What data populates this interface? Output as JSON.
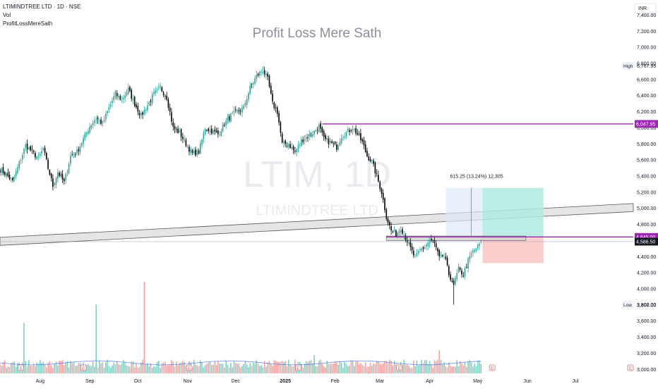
{
  "header": {
    "symbol_line": "LTIMINDTREE LTD · 1D · NSE",
    "volume_label": "Vol",
    "indicator_label": "ProfitLossMereSath"
  },
  "watermark": {
    "title": "Profit Loss Mere Sath",
    "ticker": "LTIM, 1D",
    "name": "LTIMINDTREE LTD"
  },
  "currency": "INR",
  "colors": {
    "up": "#26a69a",
    "down": "#000000",
    "vol_up": "#7fd0c4",
    "vol_down": "#f7a3a3",
    "level": "#9c27b0",
    "channel": "#c8c8c8",
    "profit_zone": "#b2ebe2",
    "loss_zone": "#fbc7c7",
    "measure_zone": "#dfe9fb",
    "price_tag": "#131722"
  },
  "chart_data": {
    "type": "candlestick",
    "title": "Profit Loss Mere Sath",
    "ylim": [
      2950,
      7500
    ],
    "y_ticks": [
      3000,
      3200,
      3400,
      3600,
      3800,
      4000,
      4200,
      4400,
      4600,
      4800,
      5000,
      5200,
      5400,
      5600,
      5800,
      6000,
      6200,
      6400,
      6600,
      6800,
      7000,
      7200,
      7400
    ],
    "x_ticks": [
      {
        "label": "Aug",
        "day": 25
      },
      {
        "label": "Sep",
        "day": 56
      },
      {
        "label": "Oct",
        "day": 86
      },
      {
        "label": "Nov",
        "day": 117
      },
      {
        "label": "Dec",
        "day": 147
      },
      {
        "label": "2025",
        "day": 178
      },
      {
        "label": "Feb",
        "day": 209
      },
      {
        "label": "Mar",
        "day": 237
      },
      {
        "label": "Apr",
        "day": 268
      },
      {
        "label": "May",
        "day": 298
      },
      {
        "label": "Jun",
        "day": 329
      },
      {
        "label": "Jul",
        "day": 359
      }
    ],
    "x_range": [
      0,
      395
    ],
    "anchors": [
      {
        "day": 0,
        "price": 5480
      },
      {
        "day": 4,
        "price": 5420
      },
      {
        "day": 8,
        "price": 5330
      },
      {
        "day": 12,
        "price": 5560
      },
      {
        "day": 16,
        "price": 5780
      },
      {
        "day": 20,
        "price": 5700
      },
      {
        "day": 24,
        "price": 5620
      },
      {
        "day": 27,
        "price": 5740
      },
      {
        "day": 30,
        "price": 5500
      },
      {
        "day": 33,
        "price": 5280
      },
      {
        "day": 36,
        "price": 5450
      },
      {
        "day": 40,
        "price": 5320
      },
      {
        "day": 44,
        "price": 5650
      },
      {
        "day": 48,
        "price": 5700
      },
      {
        "day": 52,
        "price": 5860
      },
      {
        "day": 56,
        "price": 6020
      },
      {
        "day": 60,
        "price": 6120
      },
      {
        "day": 64,
        "price": 6050
      },
      {
        "day": 68,
        "price": 6250
      },
      {
        "day": 72,
        "price": 6420
      },
      {
        "day": 76,
        "price": 6350
      },
      {
        "day": 80,
        "price": 6480
      },
      {
        "day": 84,
        "price": 6300
      },
      {
        "day": 88,
        "price": 6150
      },
      {
        "day": 92,
        "price": 6280
      },
      {
        "day": 96,
        "price": 6420
      },
      {
        "day": 100,
        "price": 6500
      },
      {
        "day": 104,
        "price": 6380
      },
      {
        "day": 108,
        "price": 6000
      },
      {
        "day": 112,
        "price": 5940
      },
      {
        "day": 116,
        "price": 5800
      },
      {
        "day": 120,
        "price": 5680
      },
      {
        "day": 124,
        "price": 5700
      },
      {
        "day": 128,
        "price": 6000
      },
      {
        "day": 132,
        "price": 5960
      },
      {
        "day": 136,
        "price": 5920
      },
      {
        "day": 140,
        "price": 6050
      },
      {
        "day": 144,
        "price": 6150
      },
      {
        "day": 148,
        "price": 6200
      },
      {
        "day": 152,
        "price": 6250
      },
      {
        "day": 156,
        "price": 6500
      },
      {
        "day": 160,
        "price": 6640
      },
      {
        "day": 164,
        "price": 6720
      },
      {
        "day": 167,
        "price": 6600
      },
      {
        "day": 170,
        "price": 6300
      },
      {
        "day": 173,
        "price": 6200
      },
      {
        "day": 176,
        "price": 5800
      },
      {
        "day": 180,
        "price": 5800
      },
      {
        "day": 184,
        "price": 5700
      },
      {
        "day": 188,
        "price": 5840
      },
      {
        "day": 192,
        "price": 5900
      },
      {
        "day": 196,
        "price": 5950
      },
      {
        "day": 199,
        "price": 6020
      },
      {
        "day": 202,
        "price": 5860
      },
      {
        "day": 206,
        "price": 5820
      },
      {
        "day": 210,
        "price": 5760
      },
      {
        "day": 213,
        "price": 5900
      },
      {
        "day": 216,
        "price": 5940
      },
      {
        "day": 220,
        "price": 6000
      },
      {
        "day": 223,
        "price": 5920
      },
      {
        "day": 226,
        "price": 5820
      },
      {
        "day": 229,
        "price": 5650
      },
      {
        "day": 232,
        "price": 5580
      },
      {
        "day": 235,
        "price": 5400
      },
      {
        "day": 238,
        "price": 5200
      },
      {
        "day": 241,
        "price": 4900
      },
      {
        "day": 244,
        "price": 4720
      },
      {
        "day": 247,
        "price": 4680
      },
      {
        "day": 250,
        "price": 4760
      },
      {
        "day": 253,
        "price": 4640
      },
      {
        "day": 256,
        "price": 4500
      },
      {
        "day": 259,
        "price": 4380
      },
      {
        "day": 262,
        "price": 4480
      },
      {
        "day": 265,
        "price": 4520
      },
      {
        "day": 268,
        "price": 4600
      },
      {
        "day": 271,
        "price": 4560
      },
      {
        "day": 274,
        "price": 4380
      },
      {
        "day": 277,
        "price": 4420
      },
      {
        "day": 280,
        "price": 4180
      },
      {
        "day": 283,
        "price": 4060
      },
      {
        "day": 286,
        "price": 4240
      },
      {
        "day": 289,
        "price": 4180
      },
      {
        "day": 292,
        "price": 4350
      },
      {
        "day": 295,
        "price": 4460
      },
      {
        "day": 298,
        "price": 4520
      },
      {
        "day": 300,
        "price": 4590
      }
    ],
    "resistance_line": {
      "label": "6,047.95",
      "price": 6047.95,
      "from_day": 201
    },
    "support_line": {
      "label": "4,645.00",
      "price": 4645.0,
      "from_day": 241
    },
    "last_price": {
      "label": "4,586.50",
      "price": 4586.5
    },
    "high": {
      "label": "High",
      "value": "6,767.95",
      "price": 6767.95
    },
    "low": {
      "label": "Low",
      "value": "3,802.00",
      "price": 3802.0
    },
    "measurement": {
      "text": "615.25 (13.24%) 12,305",
      "from_price": 4640,
      "to_price": 5255
    },
    "position": {
      "entry": 4640,
      "target": 5255,
      "stop": 4320,
      "from_day": 301,
      "to_day": 339
    },
    "channel": {
      "upper_start": 4640,
      "upper_end": 5060,
      "lower_start": 4540,
      "lower_end": 4960,
      "from_day": 0,
      "to_day": 395
    },
    "zone": {
      "top": 4655,
      "bottom": 4600,
      "from_day": 241,
      "to_day": 328
    },
    "volume_spikes": [
      {
        "day": 15,
        "value": 0.55,
        "dir": "up"
      },
      {
        "day": 60,
        "value": 0.75,
        "dir": "up"
      },
      {
        "day": 90,
        "value": 1.0,
        "dir": "down"
      },
      {
        "day": 196,
        "value": 0.2,
        "dir": "up"
      },
      {
        "day": 274,
        "value": 0.25,
        "dir": "down"
      }
    ]
  }
}
